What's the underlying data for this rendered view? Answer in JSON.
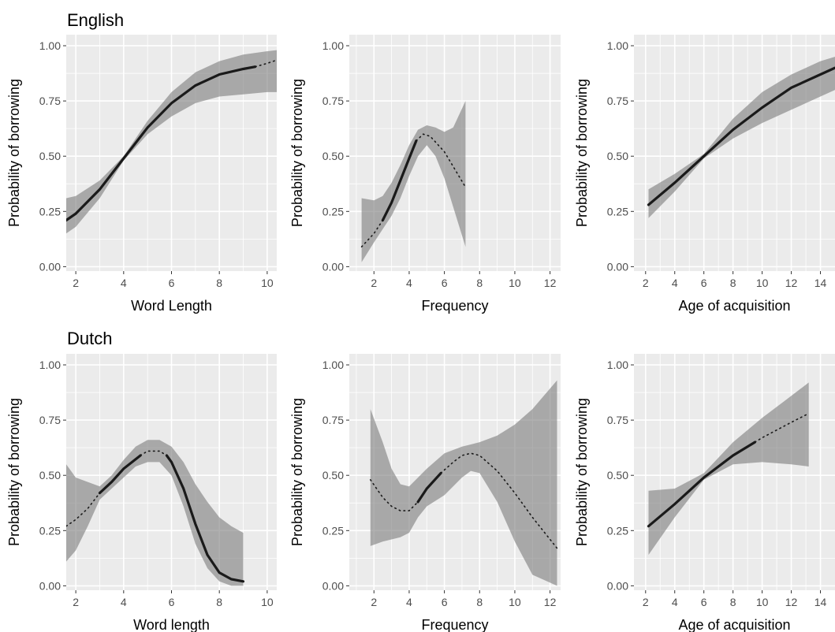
{
  "row_titles": [
    "English",
    "Dutch"
  ],
  "chart_data": [
    {
      "type": "line",
      "row": "English",
      "xlabel": "Word Length",
      "ylabel": "Probability of borrowing",
      "xlim": [
        1.6,
        10.4
      ],
      "ylim": [
        -0.02,
        1.05
      ],
      "xticks": [
        2,
        4,
        6,
        8,
        10
      ],
      "yticks": [
        0,
        0.25,
        0.5,
        0.75,
        1.0
      ],
      "ytick_labels": [
        "0.00",
        "0.25",
        "0.50",
        "0.75",
        "1.00"
      ],
      "fit": [
        [
          1.6,
          0.21
        ],
        [
          2,
          0.24
        ],
        [
          3,
          0.35
        ],
        [
          4,
          0.49
        ],
        [
          5,
          0.63
        ],
        [
          6,
          0.74
        ],
        [
          7,
          0.82
        ],
        [
          8,
          0.87
        ],
        [
          9,
          0.895
        ],
        [
          9.5,
          0.905
        ],
        [
          10,
          0.92
        ],
        [
          10.4,
          0.935
        ]
      ],
      "band": [
        [
          1.6,
          0.15,
          0.31
        ],
        [
          2,
          0.18,
          0.32
        ],
        [
          3,
          0.31,
          0.39
        ],
        [
          4,
          0.48,
          0.5
        ],
        [
          5,
          0.6,
          0.66
        ],
        [
          6,
          0.68,
          0.79
        ],
        [
          7,
          0.74,
          0.88
        ],
        [
          8,
          0.77,
          0.93
        ],
        [
          9,
          0.78,
          0.96
        ],
        [
          10,
          0.79,
          0.975
        ],
        [
          10.4,
          0.79,
          0.98
        ]
      ],
      "solid_ranges": [
        [
          1.6,
          9.5
        ]
      ]
    },
    {
      "type": "line",
      "row": "English",
      "xlabel": "Frequency",
      "ylabel": "Probability of borrowing",
      "xlim": [
        0.6,
        12.6
      ],
      "ylim": [
        -0.02,
        1.05
      ],
      "xticks": [
        2,
        4,
        6,
        8,
        10,
        12
      ],
      "yticks": [
        0,
        0.25,
        0.5,
        0.75,
        1.0
      ],
      "ytick_labels": [
        "0.00",
        "0.25",
        "0.50",
        "0.75",
        "1.00"
      ],
      "fit": [
        [
          1.3,
          0.09
        ],
        [
          2,
          0.15
        ],
        [
          2.5,
          0.21
        ],
        [
          3,
          0.29
        ],
        [
          3.5,
          0.39
        ],
        [
          4,
          0.49
        ],
        [
          4.4,
          0.57
        ],
        [
          4.8,
          0.6
        ],
        [
          5.2,
          0.59
        ],
        [
          6,
          0.52
        ],
        [
          7.2,
          0.36
        ]
      ],
      "band": [
        [
          1.3,
          0.02,
          0.31
        ],
        [
          2,
          0.11,
          0.3
        ],
        [
          2.5,
          0.17,
          0.32
        ],
        [
          3,
          0.23,
          0.38
        ],
        [
          3.5,
          0.31,
          0.46
        ],
        [
          4,
          0.41,
          0.55
        ],
        [
          4.5,
          0.5,
          0.62
        ],
        [
          5,
          0.55,
          0.64
        ],
        [
          5.5,
          0.5,
          0.63
        ],
        [
          6,
          0.4,
          0.61
        ],
        [
          6.5,
          0.27,
          0.63
        ],
        [
          7.2,
          0.09,
          0.75
        ]
      ],
      "solid_ranges": [
        [
          2.5,
          4.4
        ]
      ]
    },
    {
      "type": "line",
      "row": "English",
      "xlabel": "Age of acquisition",
      "ylabel": "Probability of borrowing",
      "xlim": [
        1.2,
        15.0
      ],
      "ylim": [
        -0.02,
        1.05
      ],
      "xticks": [
        2,
        4,
        6,
        8,
        10,
        12,
        14
      ],
      "yticks": [
        0,
        0.25,
        0.5,
        0.75,
        1.0
      ],
      "ytick_labels": [
        "0.00",
        "0.25",
        "0.50",
        "0.75",
        "1.00"
      ],
      "fit": [
        [
          2.2,
          0.28
        ],
        [
          4,
          0.38
        ],
        [
          6,
          0.5
        ],
        [
          8,
          0.62
        ],
        [
          10,
          0.72
        ],
        [
          12,
          0.81
        ],
        [
          14,
          0.87
        ],
        [
          15,
          0.9
        ]
      ],
      "band": [
        [
          2.2,
          0.22,
          0.35
        ],
        [
          4,
          0.34,
          0.42
        ],
        [
          6,
          0.49,
          0.51
        ],
        [
          8,
          0.58,
          0.67
        ],
        [
          10,
          0.65,
          0.79
        ],
        [
          12,
          0.71,
          0.87
        ],
        [
          14,
          0.77,
          0.93
        ],
        [
          15,
          0.8,
          0.95
        ]
      ],
      "solid_ranges": [
        [
          2.2,
          15.0
        ]
      ]
    },
    {
      "type": "line",
      "row": "Dutch",
      "xlabel": "Word length",
      "ylabel": "Probability of borrowing",
      "xlim": [
        1.6,
        10.4
      ],
      "ylim": [
        -0.02,
        1.05
      ],
      "xticks": [
        2,
        4,
        6,
        8,
        10
      ],
      "yticks": [
        0,
        0.25,
        0.5,
        0.75,
        1.0
      ],
      "ytick_labels": [
        "0.00",
        "0.25",
        "0.50",
        "0.75",
        "1.00"
      ],
      "fit": [
        [
          1.6,
          0.27
        ],
        [
          2,
          0.3
        ],
        [
          2.5,
          0.35
        ],
        [
          3,
          0.42
        ],
        [
          3.5,
          0.47
        ],
        [
          4,
          0.53
        ],
        [
          4.7,
          0.59
        ],
        [
          5,
          0.61
        ],
        [
          5.5,
          0.61
        ],
        [
          5.8,
          0.59
        ],
        [
          6,
          0.56
        ],
        [
          6.5,
          0.44
        ],
        [
          7,
          0.28
        ],
        [
          7.5,
          0.14
        ],
        [
          8,
          0.06
        ],
        [
          8.5,
          0.03
        ],
        [
          9,
          0.02
        ]
      ],
      "band": [
        [
          1.6,
          0.11,
          0.55
        ],
        [
          2,
          0.16,
          0.49
        ],
        [
          2.5,
          0.27,
          0.47
        ],
        [
          3,
          0.39,
          0.45
        ],
        [
          3.5,
          0.44,
          0.5
        ],
        [
          4,
          0.49,
          0.57
        ],
        [
          4.5,
          0.54,
          0.63
        ],
        [
          5,
          0.56,
          0.66
        ],
        [
          5.5,
          0.56,
          0.66
        ],
        [
          6,
          0.5,
          0.63
        ],
        [
          6.5,
          0.36,
          0.56
        ],
        [
          7,
          0.19,
          0.46
        ],
        [
          7.5,
          0.08,
          0.38
        ],
        [
          8,
          0.02,
          0.31
        ],
        [
          8.5,
          0.0,
          0.27
        ],
        [
          9,
          0.0,
          0.24
        ]
      ],
      "solid_ranges": [
        [
          3.0,
          4.7
        ],
        [
          5.8,
          9.0
        ]
      ]
    },
    {
      "type": "line",
      "row": "Dutch",
      "xlabel": "Frequency",
      "ylabel": "Probability of borrowing",
      "xlim": [
        0.6,
        12.6
      ],
      "ylim": [
        -0.02,
        1.05
      ],
      "xticks": [
        2,
        4,
        6,
        8,
        10,
        12
      ],
      "yticks": [
        0,
        0.25,
        0.5,
        0.75,
        1.0
      ],
      "ytick_labels": [
        "0.00",
        "0.25",
        "0.50",
        "0.75",
        "1.00"
      ],
      "fit": [
        [
          1.8,
          0.48
        ],
        [
          2.5,
          0.4
        ],
        [
          3,
          0.36
        ],
        [
          3.5,
          0.34
        ],
        [
          4,
          0.34
        ],
        [
          4.5,
          0.38
        ],
        [
          5,
          0.44
        ],
        [
          5.8,
          0.51
        ],
        [
          6.5,
          0.56
        ],
        [
          7,
          0.59
        ],
        [
          7.5,
          0.6
        ],
        [
          8,
          0.59
        ],
        [
          9,
          0.52
        ],
        [
          10,
          0.42
        ],
        [
          11,
          0.31
        ],
        [
          12.4,
          0.17
        ]
      ],
      "band": [
        [
          1.8,
          0.18,
          0.8
        ],
        [
          2.5,
          0.2,
          0.65
        ],
        [
          3,
          0.21,
          0.53
        ],
        [
          3.5,
          0.22,
          0.46
        ],
        [
          4,
          0.24,
          0.45
        ],
        [
          4.5,
          0.31,
          0.49
        ],
        [
          5,
          0.36,
          0.53
        ],
        [
          6,
          0.41,
          0.6
        ],
        [
          7,
          0.49,
          0.63
        ],
        [
          7.5,
          0.52,
          0.64
        ],
        [
          8,
          0.51,
          0.65
        ],
        [
          9,
          0.38,
          0.68
        ],
        [
          10,
          0.2,
          0.73
        ],
        [
          11,
          0.05,
          0.8
        ],
        [
          12.4,
          0.0,
          0.93
        ]
      ],
      "solid_ranges": [
        [
          4.5,
          5.8
        ]
      ]
    },
    {
      "type": "line",
      "row": "Dutch",
      "xlabel": "Age of acquisition",
      "ylabel": "Probability of borrowing",
      "xlim": [
        1.2,
        15.0
      ],
      "ylim": [
        -0.02,
        1.05
      ],
      "xticks": [
        2,
        4,
        6,
        8,
        10,
        12,
        14
      ],
      "yticks": [
        0,
        0.25,
        0.5,
        0.75,
        1.0
      ],
      "ytick_labels": [
        "0.00",
        "0.25",
        "0.50",
        "0.75",
        "1.00"
      ],
      "fit": [
        [
          2.2,
          0.27
        ],
        [
          4,
          0.37
        ],
        [
          6,
          0.49
        ],
        [
          8,
          0.59
        ],
        [
          9.5,
          0.65
        ],
        [
          10,
          0.67
        ],
        [
          12,
          0.74
        ],
        [
          13.2,
          0.78
        ]
      ],
      "band": [
        [
          2.2,
          0.14,
          0.43
        ],
        [
          4,
          0.31,
          0.44
        ],
        [
          6,
          0.48,
          0.51
        ],
        [
          8,
          0.55,
          0.65
        ],
        [
          10,
          0.56,
          0.76
        ],
        [
          12,
          0.55,
          0.86
        ],
        [
          13.2,
          0.54,
          0.92
        ]
      ],
      "solid_ranges": [
        [
          2.2,
          9.5
        ]
      ]
    }
  ]
}
